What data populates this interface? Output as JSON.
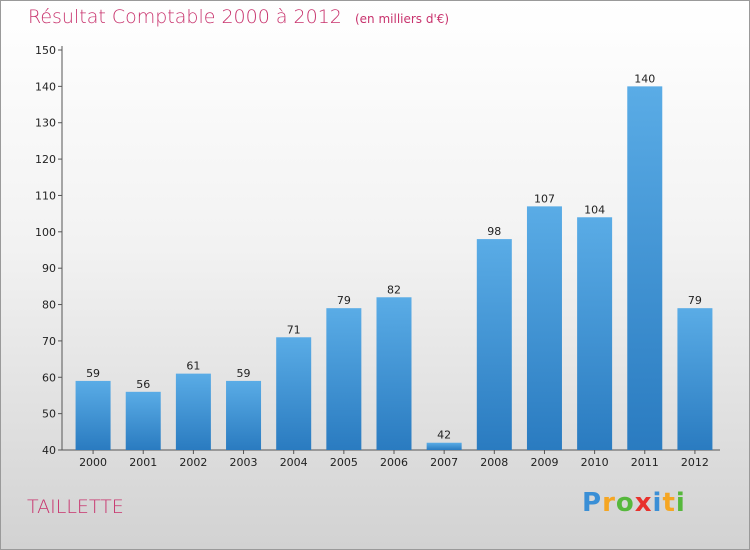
{
  "title": "Résultat Comptable 2000 à 2012",
  "subtitle": "(en milliers d'€)",
  "commune": "TAILLETTE",
  "logo": {
    "letters": [
      "P",
      "r",
      "o",
      "x",
      "i",
      "t",
      "i"
    ],
    "colors": [
      "#3a8fd6",
      "#f5a623",
      "#56b83c",
      "#e8312c",
      "#3a8fd6",
      "#f5a623",
      "#56b83c"
    ]
  },
  "colors": {
    "accent": "#c8336d",
    "bar_top": "#5aace6",
    "bar_bottom": "#2a7bc0"
  },
  "chart_data": {
    "type": "bar",
    "categories": [
      "2000",
      "2001",
      "2002",
      "2003",
      "2004",
      "2005",
      "2006",
      "2007",
      "2008",
      "2009",
      "2010",
      "2011",
      "2012"
    ],
    "values": [
      59,
      56,
      61,
      59,
      71,
      79,
      82,
      42,
      98,
      107,
      104,
      140,
      79
    ],
    "ylim": [
      40,
      150
    ],
    "yticks": [
      40,
      50,
      60,
      70,
      80,
      90,
      100,
      110,
      120,
      130,
      140,
      150
    ],
    "grid": false,
    "xlabel": "",
    "ylabel": ""
  }
}
